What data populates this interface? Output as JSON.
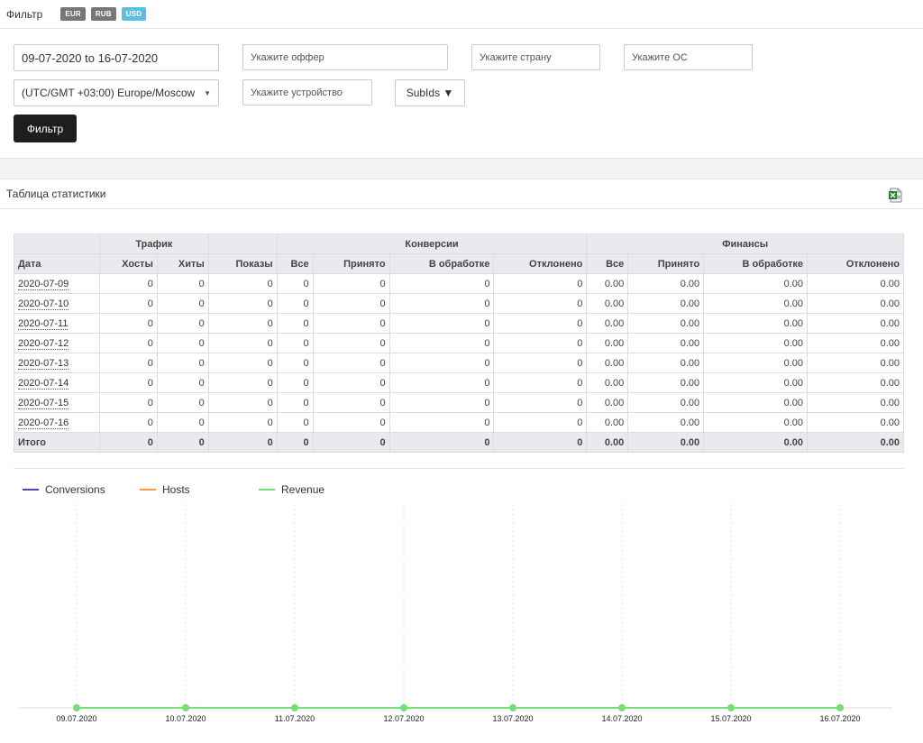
{
  "filter": {
    "title": "Фильтр",
    "currencies": [
      {
        "label": "EUR",
        "active": false
      },
      {
        "label": "RUB",
        "active": false
      },
      {
        "label": "USD",
        "active": true
      }
    ],
    "date_range": "09-07-2020 to 16-07-2020",
    "offer_placeholder": "Укажите оффер",
    "country_placeholder": "Укажите страну",
    "os_placeholder": "Укажите ОС",
    "timezone": "(UTC/GMT +03:00) Europe/Moscow",
    "device_placeholder": "Укажите устройство",
    "subids_label": "SubIds ▼",
    "submit_label": "Фильтр"
  },
  "stats": {
    "title": "Таблица статистики",
    "group_headers": {
      "traffic": "Трафик",
      "conversions": "Конверсии",
      "finance": "Финансы"
    },
    "columns": [
      "Дата",
      "Хосты",
      "Хиты",
      "Показы",
      "Все",
      "Принято",
      "В обработке",
      "Отклонено",
      "Все",
      "Принято",
      "В обработке",
      "Отклонено"
    ],
    "rows": [
      [
        "2020-07-09",
        "0",
        "0",
        "0",
        "0",
        "0",
        "0",
        "0",
        "0.00",
        "0.00",
        "0.00",
        "0.00"
      ],
      [
        "2020-07-10",
        "0",
        "0",
        "0",
        "0",
        "0",
        "0",
        "0",
        "0.00",
        "0.00",
        "0.00",
        "0.00"
      ],
      [
        "2020-07-11",
        "0",
        "0",
        "0",
        "0",
        "0",
        "0",
        "0",
        "0.00",
        "0.00",
        "0.00",
        "0.00"
      ],
      [
        "2020-07-12",
        "0",
        "0",
        "0",
        "0",
        "0",
        "0",
        "0",
        "0.00",
        "0.00",
        "0.00",
        "0.00"
      ],
      [
        "2020-07-13",
        "0",
        "0",
        "0",
        "0",
        "0",
        "0",
        "0",
        "0.00",
        "0.00",
        "0.00",
        "0.00"
      ],
      [
        "2020-07-14",
        "0",
        "0",
        "0",
        "0",
        "0",
        "0",
        "0",
        "0.00",
        "0.00",
        "0.00",
        "0.00"
      ],
      [
        "2020-07-15",
        "0",
        "0",
        "0",
        "0",
        "0",
        "0",
        "0",
        "0.00",
        "0.00",
        "0.00",
        "0.00"
      ],
      [
        "2020-07-16",
        "0",
        "0",
        "0",
        "0",
        "0",
        "0",
        "0",
        "0.00",
        "0.00",
        "0.00",
        "0.00"
      ]
    ],
    "total": [
      "Итого",
      "0",
      "0",
      "0",
      "0",
      "0",
      "0",
      "0",
      "0.00",
      "0.00",
      "0.00",
      "0.00"
    ]
  },
  "chart_data": {
    "type": "line",
    "x": [
      "09.07.2020",
      "10.07.2020",
      "11.07.2020",
      "12.07.2020",
      "13.07.2020",
      "14.07.2020",
      "15.07.2020",
      "16.07.2020"
    ],
    "series": [
      {
        "name": "Conversions",
        "color": "#5a3fc0",
        "values": [
          0,
          0,
          0,
          0,
          0,
          0,
          0,
          0
        ]
      },
      {
        "name": "Hosts",
        "color": "#f59b42",
        "values": [
          0,
          0,
          0,
          0,
          0,
          0,
          0,
          0
        ]
      },
      {
        "name": "Revenue",
        "color": "#77dd77",
        "values": [
          0,
          0,
          0,
          0,
          0,
          0,
          0,
          0
        ]
      }
    ],
    "legend": "top-left",
    "grid": true
  }
}
